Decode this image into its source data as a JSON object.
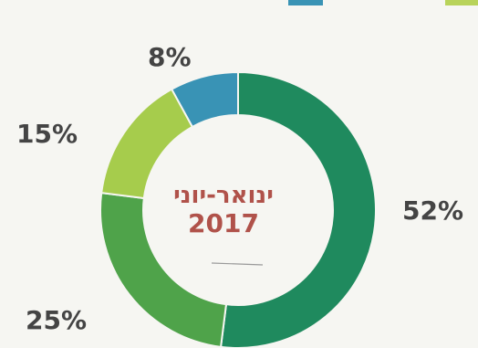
{
  "chart_data": {
    "type": "pie",
    "title": "ינואר-יוני",
    "subtitle": "2017",
    "slices": [
      {
        "label": "52%",
        "value": 52,
        "color": "#1f8a5e"
      },
      {
        "label": "25%",
        "value": 25,
        "color": "#4fa34a"
      },
      {
        "label": "15%",
        "value": 15,
        "color": "#a6cc4c"
      },
      {
        "label": "8%",
        "value": 8,
        "color": "#3993b5"
      }
    ],
    "legend": {
      "placement": "top",
      "swatch_colors": [
        "#3993b5",
        "#b8d35a"
      ]
    }
  }
}
